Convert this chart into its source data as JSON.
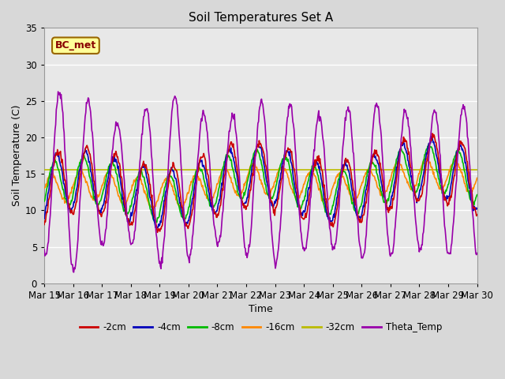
{
  "title": "Soil Temperatures Set A",
  "xlabel": "Time",
  "ylabel": "Soil Temperature (C)",
  "ylim": [
    0,
    35
  ],
  "annotation": "BC_met",
  "legend_labels": [
    "-2cm",
    "-4cm",
    "-8cm",
    "-16cm",
    "-32cm",
    "Theta_Temp"
  ],
  "legend_colors": [
    "#cc0000",
    "#0000bb",
    "#00bb00",
    "#ff8800",
    "#bbbb00",
    "#9900aa"
  ],
  "x_tick_labels": [
    "Mar 15",
    "Mar 16",
    "Mar 17",
    "Mar 18",
    "Mar 19",
    "Mar 20",
    "Mar 21",
    "Mar 22",
    "Mar 23",
    "Mar 24",
    "Mar 25",
    "Mar 26",
    "Mar 27",
    "Mar 28",
    "Mar 29",
    "Mar 30"
  ],
  "n_days": 15,
  "points_per_day": 48,
  "fig_bg": "#d8d8d8",
  "ax_bg": "#e8e8e8",
  "grid_color": "#ffffff"
}
